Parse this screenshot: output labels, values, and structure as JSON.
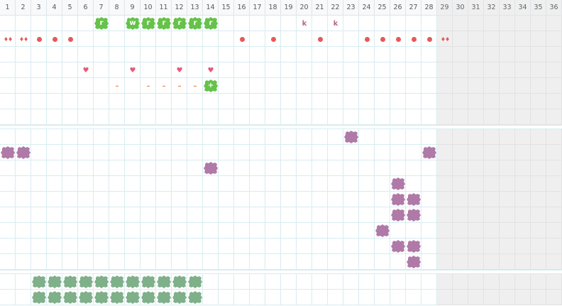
{
  "calendar": {
    "days": [
      "1",
      "2",
      "3",
      "4",
      "5",
      "6",
      "7",
      "8",
      "9",
      "10",
      "11",
      "12",
      "13",
      "14",
      "15",
      "16",
      "17",
      "18",
      "19",
      "20",
      "21",
      "22",
      "23",
      "24",
      "25",
      "26",
      "27",
      "28",
      "29",
      "30",
      "31",
      "32",
      "33",
      "34",
      "35",
      "36"
    ],
    "past_from_day": 29
  },
  "colors": {
    "green": "#66c24a",
    "red": "#e35a5a",
    "pink": "#e35a78",
    "orange": "#f08a4b",
    "purple": "#b07aa8",
    "sage": "#7fb08a",
    "letter": "#b06a8c"
  },
  "tracks": {
    "top": {
      "row1": [
        {
          "day": 7,
          "label": "r",
          "kind": "green-blob"
        },
        {
          "day": 9,
          "label": "w",
          "kind": "green-blob"
        },
        {
          "day": 10,
          "label": "r",
          "kind": "green-blob"
        },
        {
          "day": 11,
          "label": "r",
          "kind": "green-blob"
        },
        {
          "day": 12,
          "label": "r",
          "kind": "green-blob"
        },
        {
          "day": 13,
          "label": "r",
          "kind": "green-blob"
        },
        {
          "day": 14,
          "label": "r",
          "kind": "green-blob"
        },
        {
          "day": 20,
          "label": "k",
          "kind": "letter"
        },
        {
          "day": 22,
          "label": "k",
          "kind": "letter"
        }
      ],
      "row2": [
        {
          "day": 1,
          "label": "♦♦",
          "kind": "drops"
        },
        {
          "day": 2,
          "label": "♦♦",
          "kind": "drops"
        },
        {
          "day": 3,
          "kind": "dot"
        },
        {
          "day": 4,
          "kind": "dot"
        },
        {
          "day": 5,
          "kind": "dot"
        },
        {
          "day": 16,
          "kind": "dot"
        },
        {
          "day": 18,
          "kind": "dot"
        },
        {
          "day": 21,
          "kind": "dot"
        },
        {
          "day": 24,
          "kind": "dot"
        },
        {
          "day": 25,
          "kind": "dot"
        },
        {
          "day": 26,
          "kind": "dot"
        },
        {
          "day": 27,
          "kind": "dot"
        },
        {
          "day": 28,
          "kind": "dot"
        },
        {
          "day": 29,
          "label": "♦♦",
          "kind": "drops"
        }
      ],
      "row5": [
        {
          "day": 6,
          "label": "♥",
          "kind": "heart"
        },
        {
          "day": 9,
          "label": "♥",
          "kind": "heart"
        },
        {
          "day": 12,
          "label": "♥",
          "kind": "heart"
        },
        {
          "day": 14,
          "label": "♥",
          "kind": "heart"
        }
      ],
      "row6": [
        {
          "day": 8,
          "label": "–",
          "kind": "dash"
        },
        {
          "day": 10,
          "label": "–",
          "kind": "dash"
        },
        {
          "day": 11,
          "label": "–",
          "kind": "dash"
        },
        {
          "day": 12,
          "label": "–",
          "kind": "dash"
        },
        {
          "day": 13,
          "label": "–",
          "kind": "dash"
        },
        {
          "day": 14,
          "label": "+",
          "kind": "green-blob"
        }
      ]
    },
    "middle": [
      {
        "row": 1,
        "day": 23
      },
      {
        "row": 2,
        "day": 1
      },
      {
        "row": 2,
        "day": 2
      },
      {
        "row": 2,
        "day": 28
      },
      {
        "row": 3,
        "day": 14
      },
      {
        "row": 4,
        "day": 26
      },
      {
        "row": 5,
        "day": 26
      },
      {
        "row": 5,
        "day": 27
      },
      {
        "row": 6,
        "day": 26
      },
      {
        "row": 6,
        "day": 27
      },
      {
        "row": 7,
        "day": 25
      },
      {
        "row": 8,
        "day": 26
      },
      {
        "row": 8,
        "day": 27
      },
      {
        "row": 9,
        "day": 27
      }
    ],
    "bottom": {
      "rows": [
        1,
        2
      ],
      "days": [
        3,
        4,
        5,
        6,
        7,
        8,
        9,
        10,
        11,
        12,
        13
      ]
    }
  }
}
